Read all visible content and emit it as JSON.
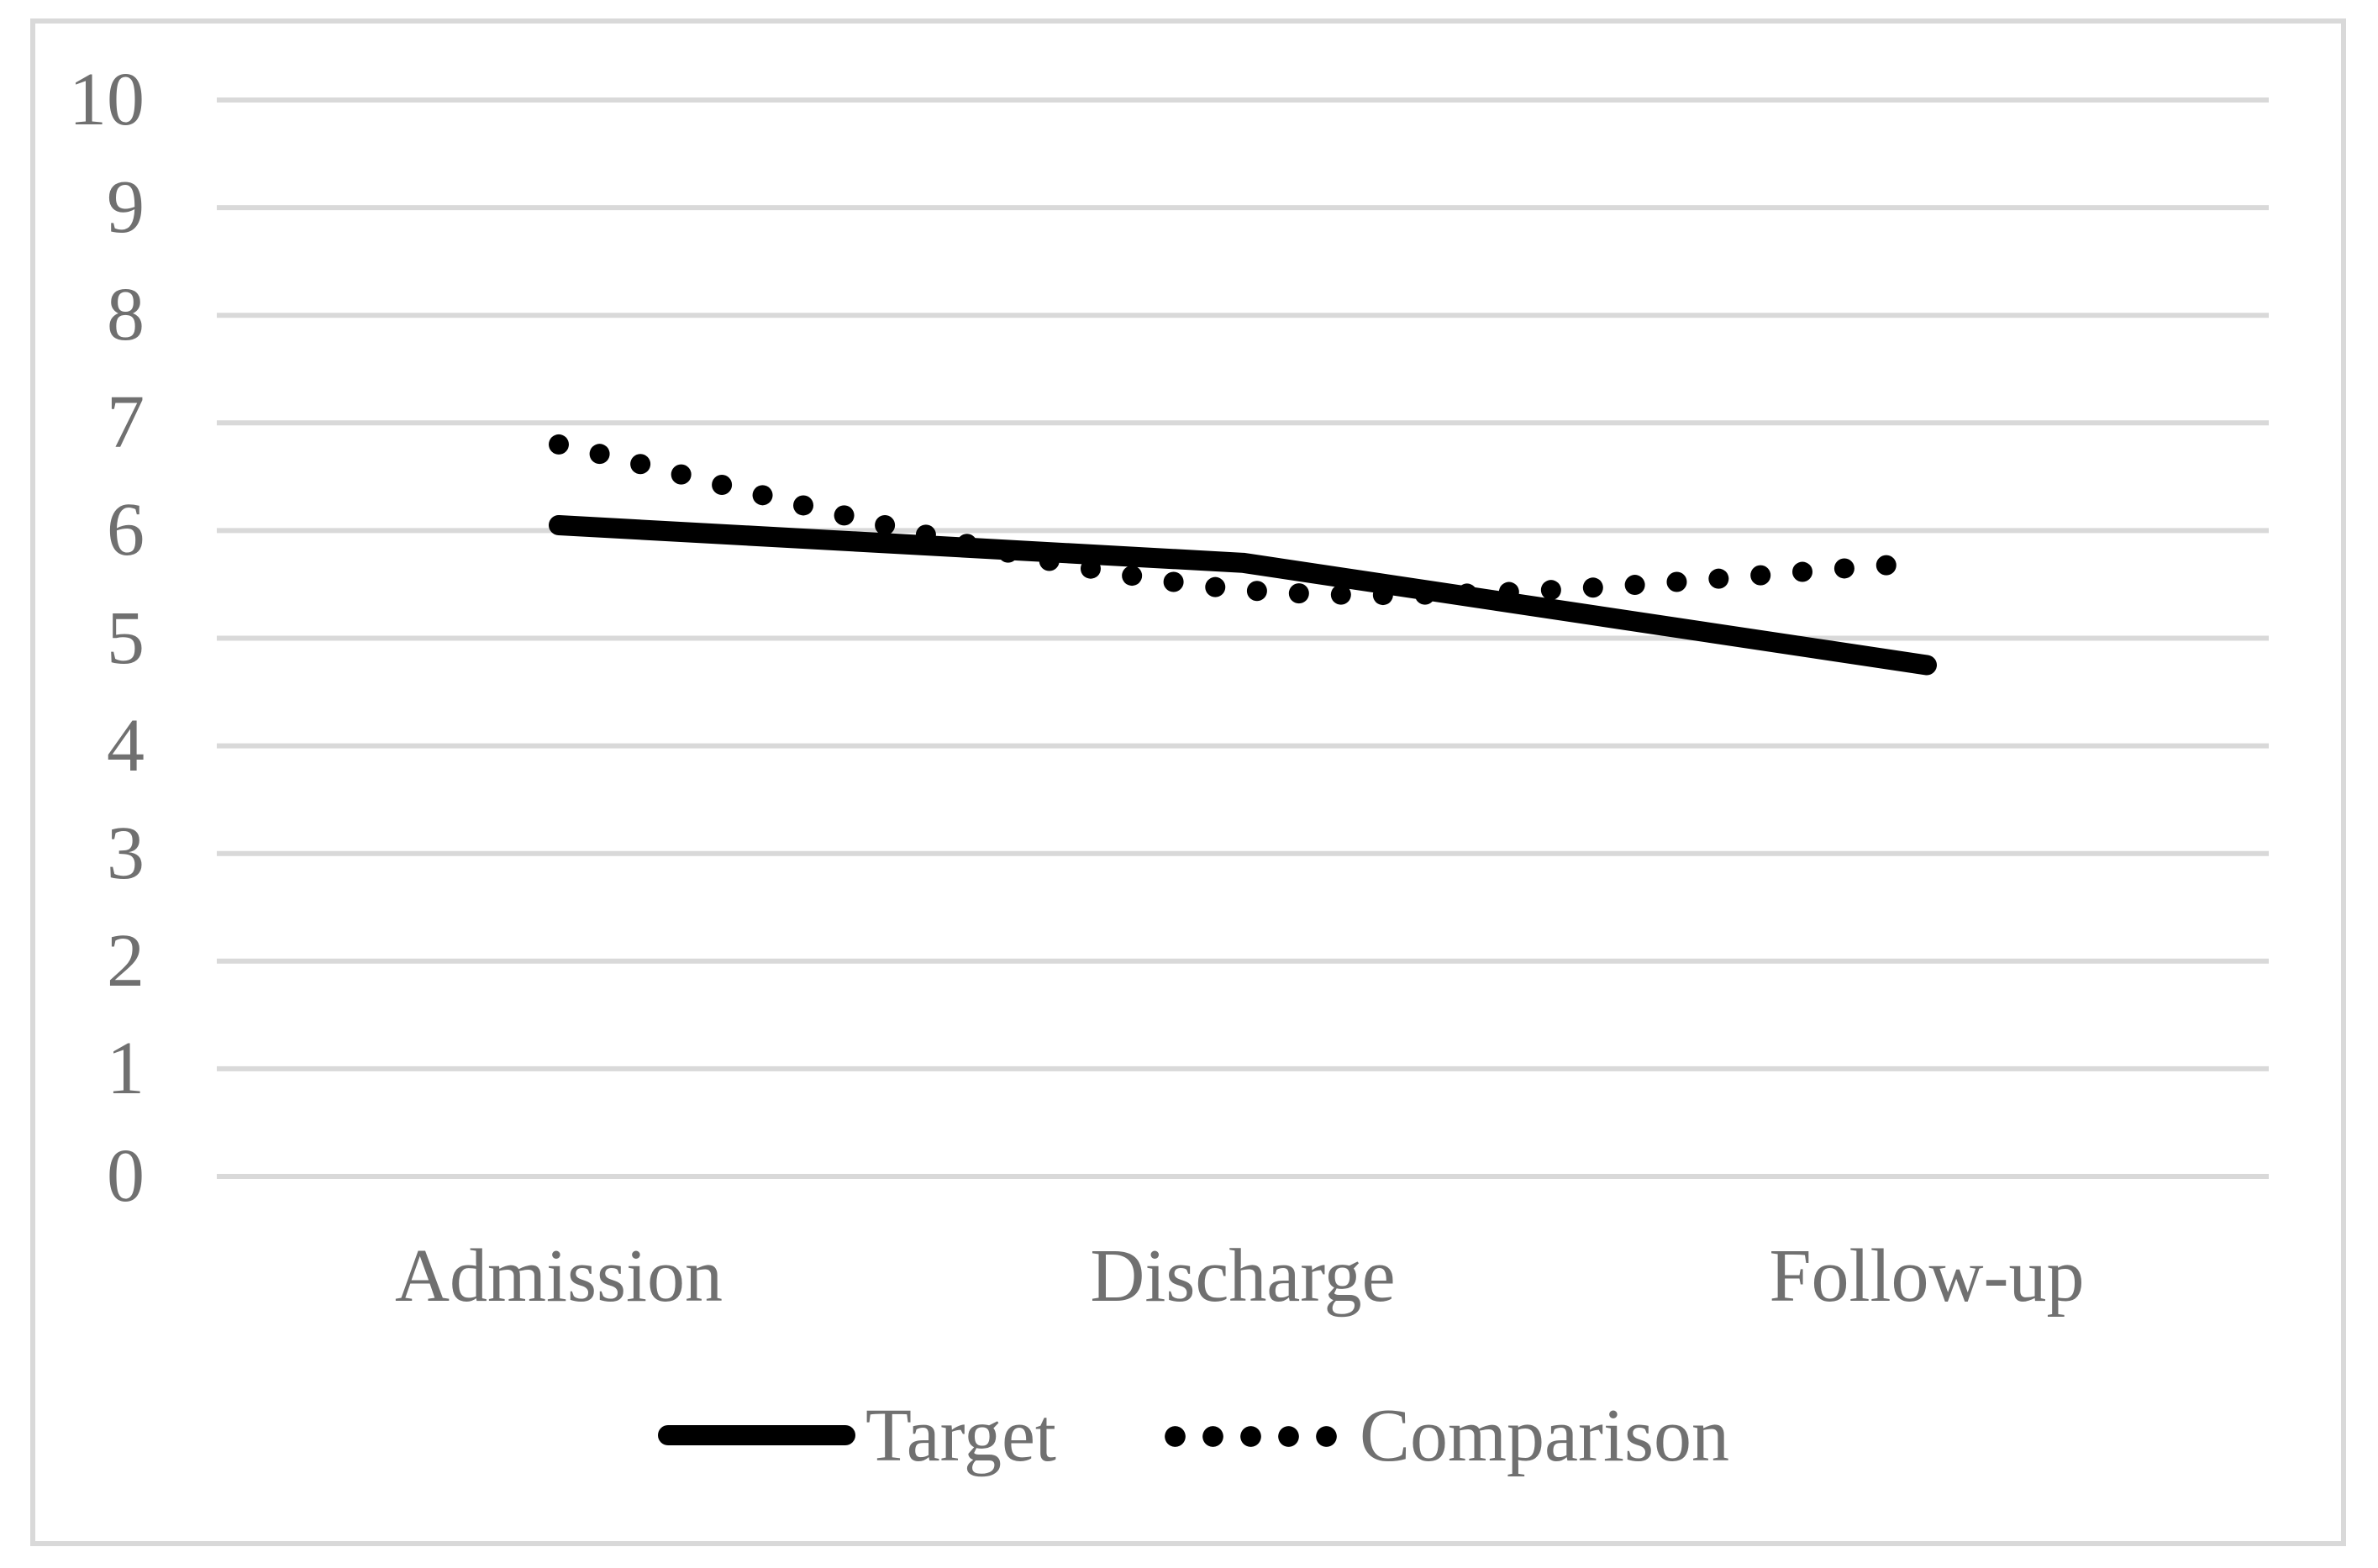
{
  "chart_data": {
    "type": "line",
    "title": "",
    "categories": [
      "Admission",
      "Discharge",
      "Follow-up"
    ],
    "series": [
      {
        "name": "Target",
        "line_style": "solid",
        "color": "#000000",
        "smoothed": false,
        "values": [
          6.05,
          5.7,
          4.75
        ]
      },
      {
        "name": "Comparison",
        "line_style": "dotted",
        "color": "#000000",
        "smoothed": true,
        "values": [
          6.8,
          5.45,
          5.7
        ]
      }
    ],
    "xlabel": "",
    "ylabel": "",
    "ylim": [
      0,
      10
    ],
    "ytick_step": 1,
    "ytick_labels": [
      "0",
      "1",
      "2",
      "3",
      "4",
      "5",
      "6",
      "7",
      "8",
      "9",
      "10"
    ],
    "grid": "horizontal",
    "gridline_color": "#d9d9d9",
    "chart_border_color": "#d9d9d9",
    "text_color": "#707070",
    "legend_position": "bottom",
    "legend": [
      "Target",
      "Comparison"
    ]
  }
}
